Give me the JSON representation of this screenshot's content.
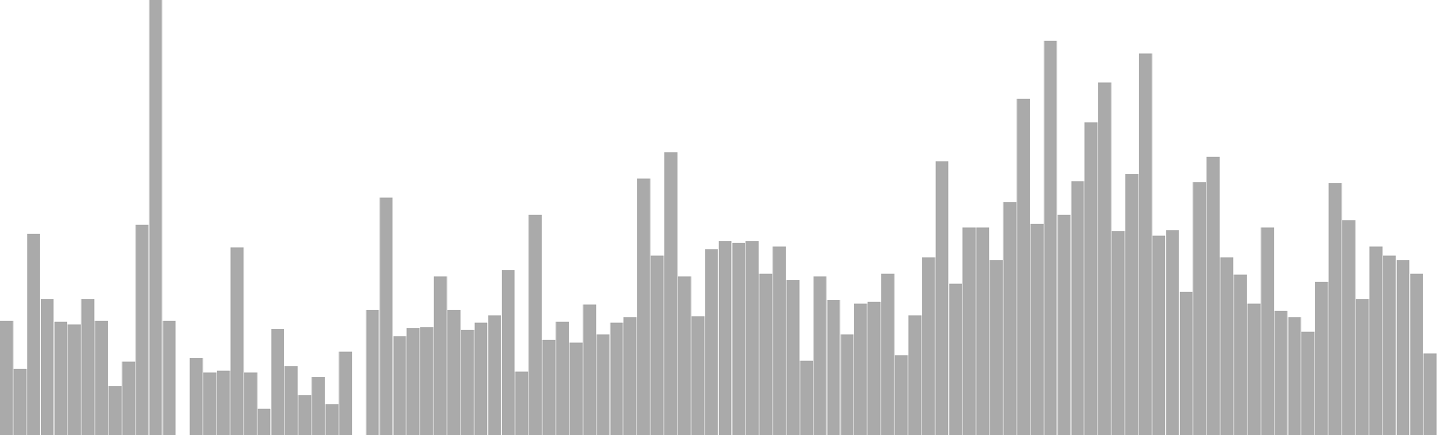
{
  "chart_data": {
    "type": "bar",
    "title": "",
    "xlabel": "",
    "ylabel": "",
    "grid": false,
    "legend": "none",
    "bar_color": "#aaaaaa",
    "bar_edge_color": "#ffffff",
    "ylim": [
      0,
      480
    ],
    "values": [
      126,
      73,
      222,
      150,
      125,
      122,
      150,
      126,
      54,
      81,
      232,
      480,
      126,
      null,
      85,
      69,
      71,
      207,
      69,
      29,
      117,
      76,
      44,
      64,
      34,
      92,
      null,
      138,
      262,
      109,
      118,
      119,
      175,
      138,
      116,
      124,
      132,
      182,
      70,
      243,
      105,
      125,
      102,
      144,
      111,
      124,
      130,
      283,
      198,
      312,
      175,
      131,
      205,
      214,
      212,
      214,
      178,
      208,
      171,
      82,
      175,
      149,
      111,
      145,
      147,
      178,
      88,
      132,
      196,
      302,
      167,
      229,
      229,
      193,
      257,
      371,
      233,
      435,
      243,
      280,
      345,
      389,
      225,
      288,
      421,
      220,
      226,
      158,
      279,
      307,
      196,
      177,
      145,
      229,
      137,
      130,
      114,
      169,
      278,
      237,
      150,
      208,
      198,
      193,
      178,
      90
    ]
  }
}
